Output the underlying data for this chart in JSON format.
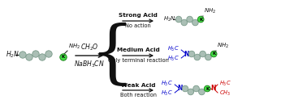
{
  "bg_color": "#ffffff",
  "ball_color": "#aabfb5",
  "ball_edge": "#7a9a8a",
  "k_color": "#44dd44",
  "k_edge": "#228822",
  "blue": "#0000cc",
  "red": "#cc0000",
  "black": "#111111",
  "strong_acid": "Strong Acid",
  "no_action": "No action",
  "medium_acid": "Medium Acid",
  "only_terminal": "Only terminal reaction",
  "weak_acid": "Weak Acid",
  "both_reaction": "Both reaction",
  "fig_w": 3.78,
  "fig_h": 1.39,
  "dpi": 100
}
